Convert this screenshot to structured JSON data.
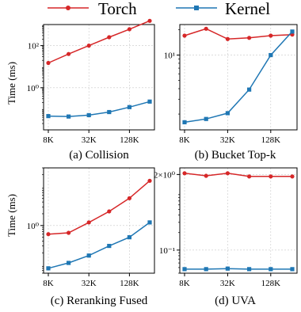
{
  "legend": [
    {
      "label": "Torch",
      "color": "#d62728",
      "marker": "circle"
    },
    {
      "label": "Kernel",
      "color": "#1f77b4",
      "marker": "square"
    }
  ],
  "chart_data": [
    {
      "type": "line",
      "caption": "(a) Collision",
      "ylabel": "Time (ms)",
      "yscale": "log",
      "ylim": [
        0.01,
        1000
      ],
      "yticks": [
        {
          "value": 1,
          "label": "10⁰"
        },
        {
          "value": 100,
          "label": "10²"
        }
      ],
      "xscale": "log2",
      "x": [
        8192,
        16384,
        32768,
        65536,
        131072,
        262144
      ],
      "xticks": [
        {
          "value": 8192,
          "label": "8K"
        },
        {
          "value": 32768,
          "label": "32K"
        },
        {
          "value": 131072,
          "label": "128K"
        }
      ],
      "grid": true,
      "series": [
        {
          "name": "Torch",
          "values": [
            15,
            40,
            100,
            250,
            600,
            1500
          ]
        },
        {
          "name": "Kernel",
          "values": [
            0.045,
            0.043,
            0.05,
            0.07,
            0.12,
            0.22
          ]
        }
      ]
    },
    {
      "type": "line",
      "caption": "(b) Bucket Top-k",
      "ylabel": "",
      "yscale": "log",
      "ylim": [
        1.3,
        23
      ],
      "yticks": [
        {
          "value": 10,
          "label": "10¹"
        }
      ],
      "xscale": "log2",
      "x": [
        8192,
        16384,
        32768,
        65536,
        131072,
        262144
      ],
      "xticks": [
        {
          "value": 8192,
          "label": "8K"
        },
        {
          "value": 32768,
          "label": "32K"
        },
        {
          "value": 131072,
          "label": "128K"
        }
      ],
      "grid": true,
      "series": [
        {
          "name": "Torch",
          "values": [
            17,
            20.5,
            15.5,
            16,
            17,
            17.5
          ]
        },
        {
          "name": "Kernel",
          "values": [
            1.6,
            1.75,
            2.05,
            3.9,
            10,
            19
          ]
        }
      ]
    },
    {
      "type": "line",
      "caption": "(c) Reranking Fused",
      "ylabel": "Time (ms)",
      "yscale": "log",
      "ylim": [
        0.06,
        30
      ],
      "yticks": [
        {
          "value": 1,
          "label": "10⁰"
        }
      ],
      "xscale": "log2",
      "x": [
        8192,
        16384,
        32768,
        65536,
        131072,
        262144
      ],
      "xticks": [
        {
          "value": 8192,
          "label": "8K"
        },
        {
          "value": 32768,
          "label": "32K"
        },
        {
          "value": 131072,
          "label": "128K"
        }
      ],
      "grid": true,
      "series": [
        {
          "name": "Torch",
          "values": [
            0.6,
            0.65,
            1.2,
            2.3,
            5,
            14
          ]
        },
        {
          "name": "Kernel",
          "values": [
            0.08,
            0.11,
            0.17,
            0.3,
            0.5,
            1.2
          ]
        }
      ]
    },
    {
      "type": "line",
      "caption": "(d) UVA",
      "ylabel": "",
      "yscale": "log",
      "ylim": [
        0.04,
        2.6
      ],
      "yticks": [
        {
          "value": 2,
          "label": "2×10⁰"
        },
        {
          "value": 0.1,
          "label": "10⁻¹"
        }
      ],
      "xscale": "log2",
      "x": [
        8192,
        16384,
        32768,
        65536,
        131072,
        262144
      ],
      "xticks": [
        {
          "value": 8192,
          "label": "8K"
        },
        {
          "value": 32768,
          "label": "32K"
        },
        {
          "value": 131072,
          "label": "128K"
        }
      ],
      "grid": true,
      "series": [
        {
          "name": "Torch",
          "values": [
            2.1,
            1.9,
            2.1,
            1.85,
            1.85,
            1.85
          ]
        },
        {
          "name": "Kernel",
          "values": [
            0.047,
            0.047,
            0.048,
            0.047,
            0.047,
            0.047
          ]
        }
      ]
    }
  ]
}
